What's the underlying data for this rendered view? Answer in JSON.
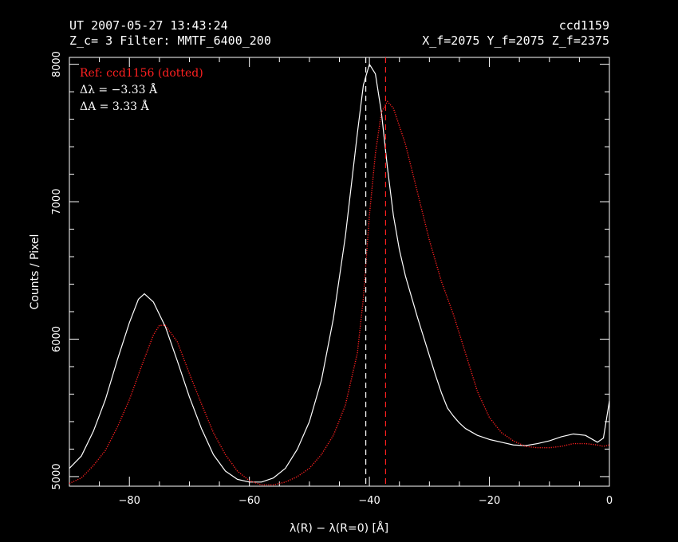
{
  "header": {
    "timestamp": "UT 2007-05-27 13:43:24",
    "ccd": "ccd1159",
    "zc_filter": "Z_c= 3   Filter: MMTF_6400_200",
    "focus": "X_f=2075  Y_f=2075  Z_f=2375"
  },
  "annotations": {
    "ref": "Ref:   ccd1156 (dotted)",
    "dlambda": "Δλ  =    −3.33 Å",
    "da": "ΔA  =     3.33 Å"
  },
  "colors": {
    "background": "#000000",
    "current": "#ffffff",
    "reference": "#ff2020"
  },
  "chart_data": {
    "type": "line",
    "xlabel": "λ(R) − λ(R=0)   [Å]",
    "ylabel": "Counts / Pixel",
    "xlim": [
      -90,
      0
    ],
    "ylim": [
      4930,
      8050
    ],
    "grid": false,
    "x_ticks": [
      -80,
      -60,
      -40,
      -20,
      0
    ],
    "x_tick_labels": [
      "−80",
      "−60",
      "−40",
      "−20",
      "0"
    ],
    "y_ticks": [
      5000,
      6000,
      7000,
      8000
    ],
    "y_tick_labels": [
      "5000",
      "6000",
      "7000",
      "8000"
    ],
    "series": [
      {
        "name": "ccd1159",
        "style": "solid",
        "x": [
          -90,
          -88,
          -86,
          -84,
          -82,
          -80,
          -78.5,
          -77.5,
          -76,
          -74,
          -72,
          -70,
          -68,
          -66,
          -64,
          -62,
          -60,
          -58,
          -56,
          -54,
          -52,
          -50,
          -48,
          -46,
          -44,
          -42,
          -41,
          -40,
          -39,
          -38,
          -37,
          -36,
          -35,
          -34,
          -33,
          -32,
          -31,
          -30,
          -29,
          -28,
          -27,
          -26,
          -25,
          -24,
          -22,
          -20,
          -18,
          -16,
          -14,
          -12,
          -10,
          -8,
          -6,
          -4,
          -2,
          -1,
          0
        ],
        "y": [
          5060,
          5150,
          5330,
          5560,
          5850,
          6120,
          6290,
          6330,
          6270,
          6090,
          5840,
          5580,
          5350,
          5160,
          5040,
          4980,
          4960,
          4960,
          4990,
          5060,
          5200,
          5400,
          5700,
          6150,
          6750,
          7500,
          7850,
          8000,
          7930,
          7650,
          7250,
          6900,
          6650,
          6460,
          6310,
          6160,
          6020,
          5880,
          5740,
          5610,
          5500,
          5440,
          5390,
          5350,
          5300,
          5270,
          5250,
          5230,
          5225,
          5240,
          5260,
          5290,
          5310,
          5300,
          5250,
          5280,
          5550
        ]
      },
      {
        "name": "ccd1156 (dotted)",
        "style": "dotted",
        "x": [
          -90,
          -88,
          -86,
          -84,
          -82,
          -80,
          -78,
          -76,
          -75,
          -74,
          -72,
          -70,
          -68,
          -66,
          -64,
          -62,
          -60,
          -58,
          -56,
          -54,
          -52,
          -50,
          -48,
          -46,
          -44,
          -42,
          -41,
          -40,
          -39,
          -38,
          -37,
          -36,
          -34,
          -32,
          -30,
          -28,
          -26,
          -24,
          -22,
          -20,
          -18,
          -16,
          -14,
          -12,
          -10,
          -8,
          -6,
          -4,
          -2,
          -1,
          0
        ],
        "y": [
          4950,
          4990,
          5080,
          5190,
          5360,
          5560,
          5800,
          6030,
          6100,
          6100,
          5980,
          5750,
          5530,
          5320,
          5160,
          5040,
          4970,
          4940,
          4940,
          4960,
          5000,
          5060,
          5160,
          5300,
          5520,
          5900,
          6300,
          6900,
          7350,
          7650,
          7730,
          7680,
          7420,
          7070,
          6720,
          6420,
          6180,
          5900,
          5620,
          5430,
          5320,
          5260,
          5220,
          5210,
          5210,
          5220,
          5240,
          5240,
          5230,
          5220,
          5230
        ]
      }
    ],
    "vlines": [
      {
        "x": -40.6,
        "style": "dashed",
        "color": "#ffffff"
      },
      {
        "x": -37.3,
        "style": "dashed",
        "color": "#ff2020"
      }
    ]
  }
}
